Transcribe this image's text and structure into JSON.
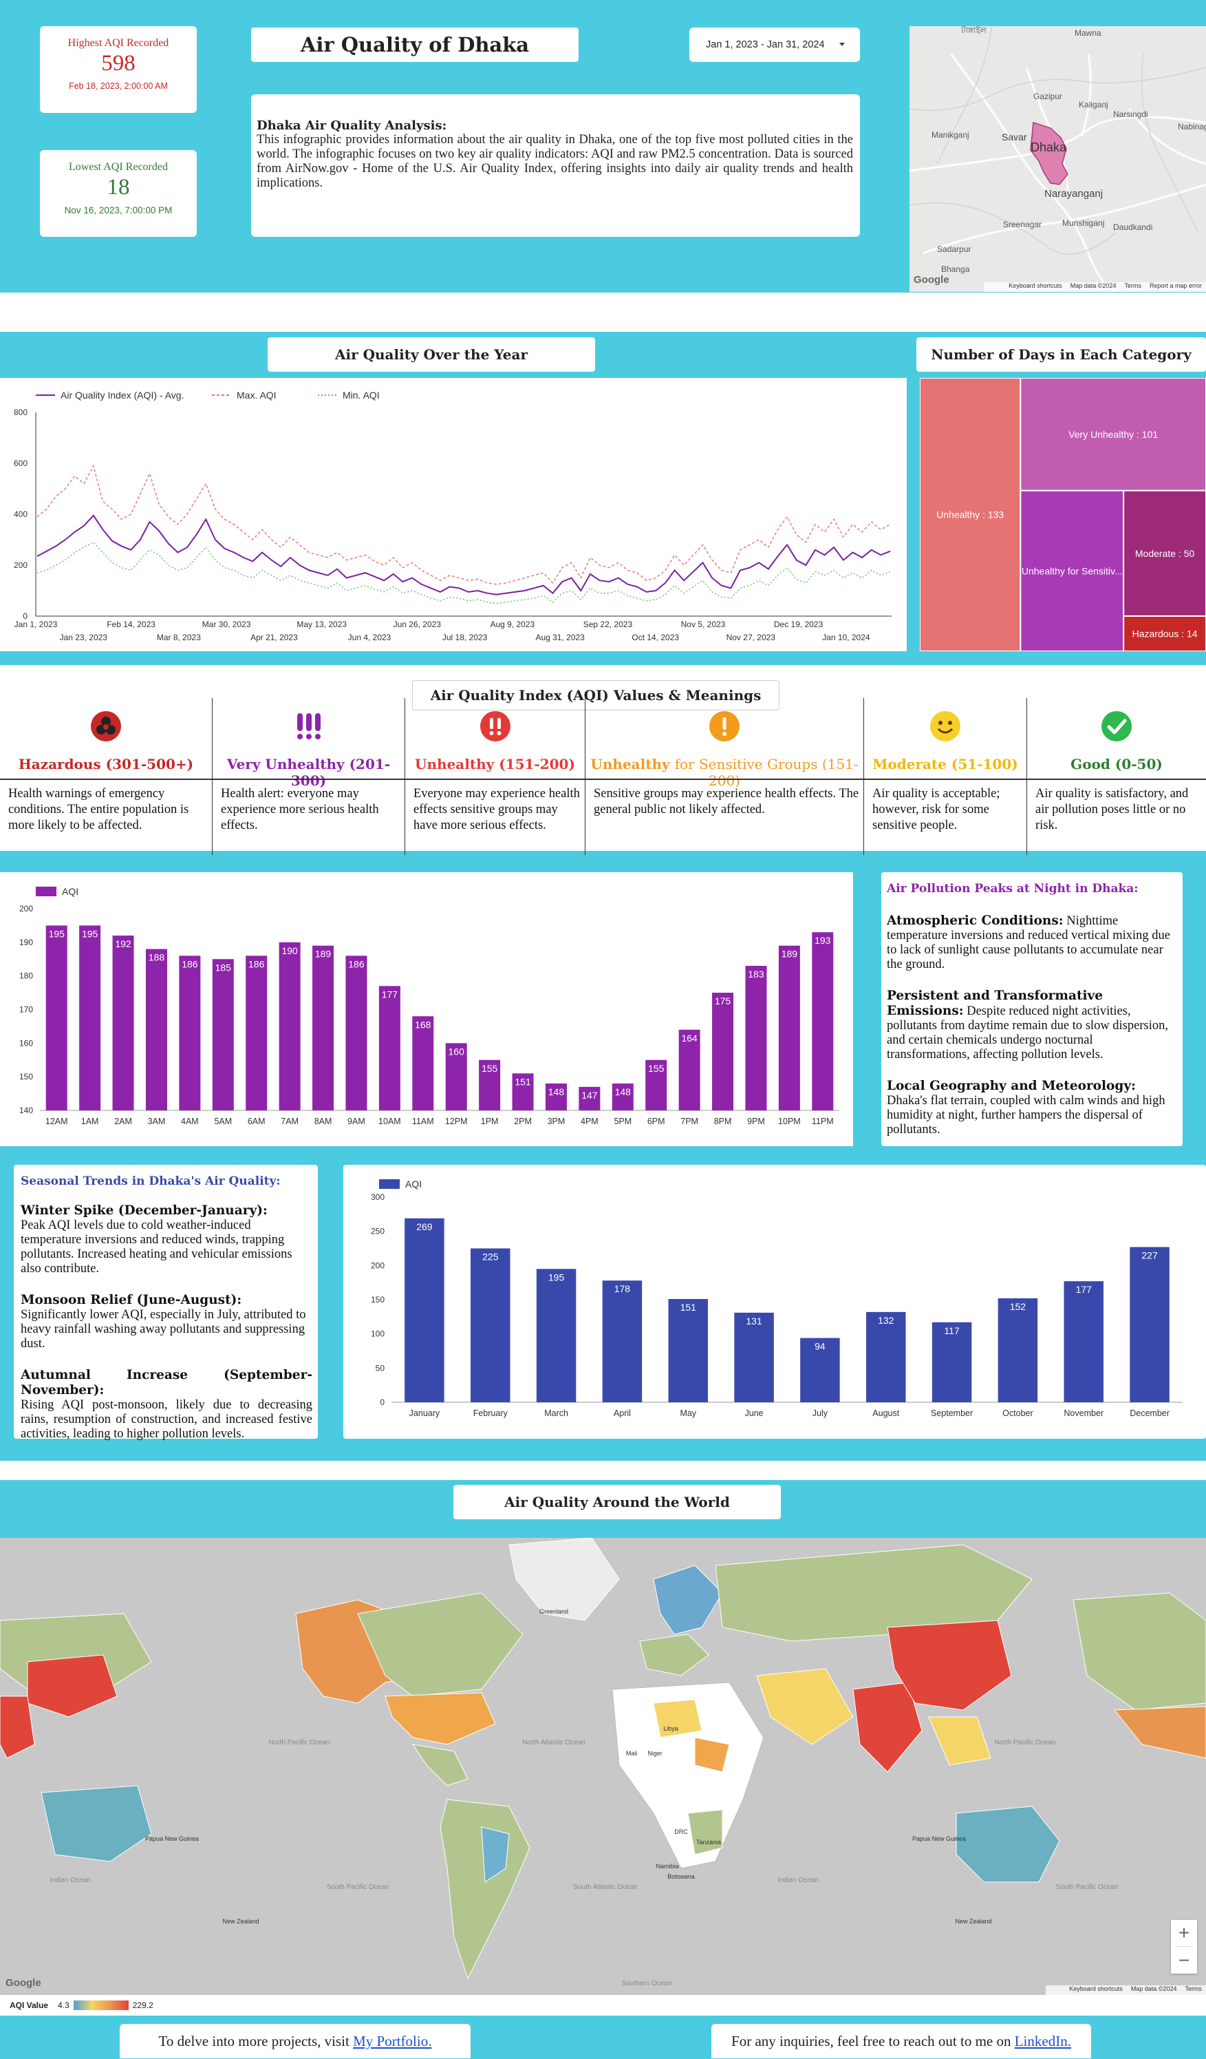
{
  "header": {
    "highest": {
      "label": "Highest AQI Recorded",
      "value": "598",
      "date": "Feb 18, 2023, 2:00:00 AM"
    },
    "lowest": {
      "label": "Lowest AQI Recorded",
      "value": "18",
      "date": "Nov 16, 2023, 7:00:00 PM"
    },
    "title": "Air Quality of Dhaka",
    "date_range": "Jan 1, 2023 - Jan 31, 2024",
    "analysis_heading": "Dhaka Air Quality Analysis:",
    "analysis_body": "This infographic provides information about the air quality in Dhaka, one of the top five most polluted cities in the world. The infographic focuses on two key air quality indicators: AQI and raw PM2.5 concentration. Data is sourced from AirNow.gov - Home of the U.S. Air Quality Index, offering insights into daily air quality trends and health implications."
  },
  "dhaka_map": {
    "labels": [
      "টাঙ্গাইল",
      "Mawna",
      "Gazipur",
      "Kaliganj",
      "Narsingdi",
      "Manikganj",
      "Savar",
      "Dhaka",
      "Nabinagar",
      "Narayanganj",
      "Sreenagar",
      "Munshiganj",
      "Daudkandi",
      "Sadarpur",
      "Bhanga"
    ],
    "footer": [
      "Keyboard shortcuts",
      "Map data ©2024",
      "Terms",
      "Report a map error"
    ],
    "google": "Google"
  },
  "section_titles": {
    "year": "Air Quality Over the Year",
    "days": "Number of Days in Each Category",
    "aqi_meanings": "Air Quality Index (AQI) Values & Meanings",
    "world": "Air Quality Around the World"
  },
  "chart_data": [
    {
      "type": "line",
      "legend": [
        "Air Quality Index (AQI) - Avg.",
        "Max. AQI",
        "Min. AQI"
      ],
      "xlim": [
        "2023-01-01",
        "2024-01-31"
      ],
      "ylim": [
        0,
        800
      ],
      "yticks": [
        0,
        200,
        400,
        600,
        800
      ],
      "xticks_top": [
        "Jan 1, 2023",
        "Feb 14, 2023",
        "Mar 30, 2023",
        "May 13, 2023",
        "Jun 26, 2023",
        "Aug 9, 2023",
        "Sep 22, 2023",
        "Nov 5, 2023",
        "Dec 19, 2023"
      ],
      "xticks_bottom": [
        "Jan 23, 2023",
        "Mar 8, 2023",
        "Apr 21, 2023",
        "Jun 4, 2023",
        "Jul 18, 2023",
        "Aug 31, 2023",
        "Oct 14, 2023",
        "Nov 27, 2023",
        "Jan 10, 2024"
      ],
      "series": [
        {
          "name": "Air Quality Index (AQI) - Avg.",
          "color": "#7b1fa2",
          "values": [
            235,
            255,
            275,
            300,
            330,
            355,
            395,
            340,
            295,
            275,
            260,
            300,
            370,
            335,
            285,
            250,
            270,
            320,
            380,
            300,
            265,
            250,
            230,
            215,
            250,
            220,
            195,
            230,
            200,
            180,
            170,
            160,
            185,
            150,
            160,
            170,
            155,
            140,
            165,
            135,
            150,
            125,
            110,
            95,
            115,
            110,
            95,
            100,
            90,
            85,
            90,
            95,
            100,
            110,
            120,
            90,
            135,
            150,
            100,
            165,
            140,
            135,
            150,
            125,
            115,
            95,
            100,
            130,
            180,
            140,
            175,
            210,
            150,
            120,
            110,
            180,
            190,
            210,
            185,
            235,
            280,
            220,
            200,
            260,
            240,
            270,
            220,
            250,
            230,
            260,
            240,
            255
          ]
        },
        {
          "name": "Max. AQI",
          "color": "#e57373",
          "values": [
            390,
            420,
            470,
            500,
            550,
            520,
            590,
            450,
            420,
            380,
            400,
            480,
            560,
            440,
            390,
            360,
            400,
            460,
            520,
            420,
            380,
            360,
            330,
            300,
            340,
            300,
            270,
            310,
            280,
            250,
            240,
            230,
            250,
            220,
            230,
            240,
            215,
            200,
            230,
            190,
            210,
            180,
            160,
            140,
            160,
            150,
            140,
            145,
            130,
            125,
            130,
            140,
            150,
            160,
            170,
            130,
            190,
            210,
            150,
            230,
            200,
            190,
            210,
            180,
            170,
            140,
            150,
            180,
            240,
            200,
            240,
            280,
            220,
            180,
            170,
            260,
            280,
            300,
            270,
            340,
            390,
            320,
            290,
            360,
            330,
            380,
            310,
            360,
            330,
            370,
            340,
            360
          ]
        },
        {
          "name": "Min. AQI",
          "color": "#66bb6a",
          "values": [
            170,
            180,
            200,
            220,
            250,
            270,
            290,
            250,
            210,
            190,
            180,
            220,
            260,
            240,
            200,
            180,
            190,
            230,
            270,
            220,
            190,
            180,
            160,
            150,
            180,
            160,
            140,
            160,
            140,
            130,
            120,
            110,
            130,
            100,
            110,
            120,
            105,
            95,
            115,
            90,
            100,
            85,
            70,
            60,
            75,
            70,
            60,
            65,
            55,
            50,
            55,
            60,
            65,
            70,
            80,
            55,
            90,
            100,
            65,
            110,
            90,
            90,
            100,
            80,
            70,
            60,
            65,
            85,
            120,
            90,
            115,
            140,
            95,
            75,
            70,
            110,
            120,
            140,
            120,
            160,
            190,
            145,
            130,
            175,
            160,
            180,
            150,
            170,
            150,
            180,
            160,
            175
          ]
        }
      ]
    },
    {
      "type": "treemap",
      "categories": [
        "Unhealthy",
        "Very Unhealthy",
        "Unhealthy for Sensitive Groups",
        "Moderate",
        "Hazardous"
      ],
      "values": [
        133,
        101,
        80,
        50,
        14
      ],
      "labels": [
        "Unhealthy : 133",
        "Very Unhealthy : 101",
        "Unhealthy for Sensitiv...",
        "Moderate : 50",
        "Hazardous : 14"
      ],
      "colors": [
        "#e57373",
        "#c05db0",
        "#a83ab5",
        "#9c2a78",
        "#c62828"
      ]
    },
    {
      "type": "bar",
      "legend": "AQI",
      "color": "#8e24aa",
      "categories": [
        "12AM",
        "1AM",
        "2AM",
        "3AM",
        "4AM",
        "5AM",
        "6AM",
        "7AM",
        "8AM",
        "9AM",
        "10AM",
        "11AM",
        "12PM",
        "1PM",
        "2PM",
        "3PM",
        "4PM",
        "5PM",
        "6PM",
        "7PM",
        "8PM",
        "9PM",
        "10PM",
        "11PM"
      ],
      "values": [
        195,
        195,
        192,
        188,
        186,
        185,
        186,
        190,
        189,
        186,
        177,
        168,
        160,
        155,
        151,
        148,
        147,
        148,
        155,
        164,
        175,
        183,
        189,
        193
      ],
      "ylim": [
        140,
        200
      ],
      "yticks": [
        140,
        150,
        160,
        170,
        180,
        190,
        200
      ]
    },
    {
      "type": "bar",
      "legend": "AQI",
      "color": "#3949ab",
      "categories": [
        "January",
        "February",
        "March",
        "April",
        "May",
        "June",
        "July",
        "August",
        "September",
        "October",
        "November",
        "December"
      ],
      "values": [
        269,
        225,
        195,
        178,
        151,
        131,
        94,
        132,
        117,
        152,
        177,
        227
      ],
      "ylim": [
        0,
        300
      ],
      "yticks": [
        0,
        50,
        100,
        150,
        200,
        250,
        300
      ]
    }
  ],
  "aqi_meanings": [
    {
      "head": "Hazardous (301-500+)",
      "head2": "",
      "desc": "Health warnings of emergency conditions. The entire population is more likely to be affected.",
      "color": "#c62828",
      "icon": "biohazard-icon"
    },
    {
      "head": "Very Unhealthy (201-300)",
      "head2": "",
      "desc": "Health alert: everyone may experience more serious health effects.",
      "color": "#8e24aa",
      "icon": "triple-exclamation-icon"
    },
    {
      "head": "Unhealthy (151-200)",
      "head2": "",
      "desc": "Everyone may experience health effects sensitive groups may have more serious effects.",
      "color": "#e53935",
      "icon": "double-exclamation-icon"
    },
    {
      "head": "Unhealthy ",
      "head2": "for Sensitive Groups (151-200)",
      "desc": "Sensitive groups may experience health effects. The general public not likely affected.",
      "color": "#f29b1d",
      "icon": "exclamation-icon"
    },
    {
      "head": "Moderate (51-100)",
      "head2": "",
      "desc": "Air quality is acceptable; however, risk for some sensitive people.",
      "color": "#f2b705",
      "icon": "smiley-icon"
    },
    {
      "head": "Good (0-50)",
      "head2": "",
      "desc": "Air quality is satisfactory, and air pollution poses little or no risk.",
      "color": "#2e7d32",
      "icon": "checkmark-icon"
    }
  ],
  "night_panel": {
    "title": "Air Pollution Peaks at Night in Dhaka:",
    "items": [
      {
        "b": "Atmospheric Conditions:",
        "t": " Nighttime temperature inversions and reduced vertical mixing due to lack of sunlight cause pollutants to accumulate near the ground."
      },
      {
        "b": "Persistent and Transformative Emissions:",
        "t": " Despite reduced night activities, pollutants from daytime remain due to slow dispersion, and certain chemicals undergo nocturnal transformations, affecting pollution levels."
      },
      {
        "b": "Local Geography and Meteorology:",
        "t": " Dhaka's flat terrain, coupled with calm winds and high humidity at night, further hampers the dispersal of pollutants."
      }
    ]
  },
  "seasonal_panel": {
    "title": "Seasonal Trends in Dhaka's Air Quality:",
    "items": [
      {
        "b": "Winter Spike (December-January):",
        "t": "Peak AQI levels due to cold weather-induced temperature inversions and reduced winds, trapping pollutants. Increased heating and vehicular emissions also contribute."
      },
      {
        "b": "Monsoon Relief (June-August):",
        "t": "Significantly lower AQI, especially in July, attributed to heavy rainfall washing away pollutants and suppressing dust."
      },
      {
        "b": "Autumnal Increase (September-November):",
        "t": "Rising AQI post-monsoon, likely due to decreasing rains, resumption of construction, and increased festive activities, leading to higher pollution levels."
      }
    ]
  },
  "world_map": {
    "ocean_labels": [
      "North Pacific Ocean",
      "North Atlantic Ocean",
      "North Pacific Ocean",
      "Indian Ocean",
      "South Pacific Ocean",
      "South Atlantic Ocean",
      "Indian Ocean",
      "South Pacific Ocean",
      "Southern Ocean"
    ],
    "country_labels": [
      "Greenland",
      "Libya",
      "Mali",
      "Niger",
      "DRC",
      "Tanzania",
      "Namibia",
      "Botswana",
      "Papua New Guinea",
      "Papua New Guinea",
      "New Zealand",
      "New Zealand"
    ],
    "legend_label": "AQI Value",
    "legend_min": "4.3",
    "legend_max": "229.2",
    "footer": [
      "Keyboard shortcuts",
      "Map data ©2024",
      "Terms"
    ],
    "google": "Google",
    "zoom_in": "+",
    "zoom_out": "−"
  },
  "footer": {
    "left_text": "To delve into more projects, visit ",
    "left_link": "My Portfolio.",
    "right_text": "For any inquiries, feel free to reach out to me on ",
    "right_link": "LinkedIn."
  }
}
